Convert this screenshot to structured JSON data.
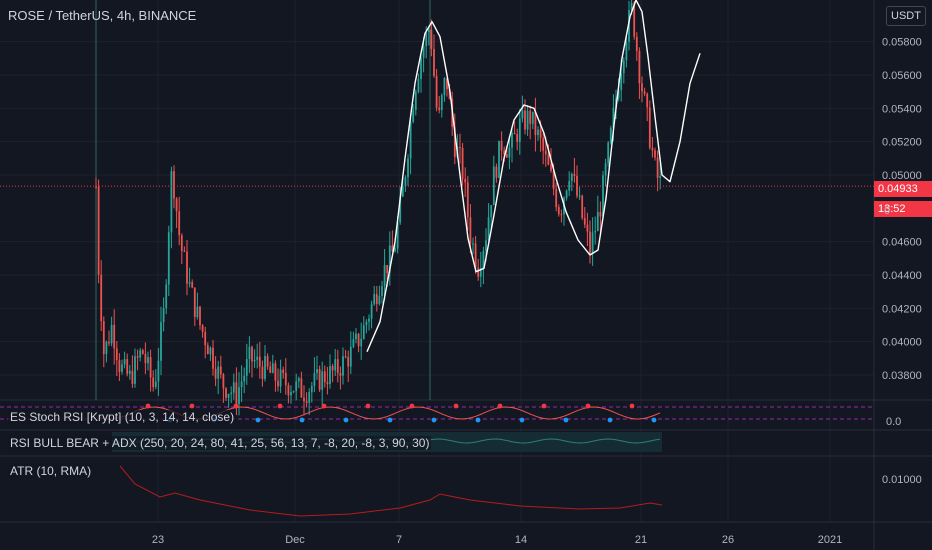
{
  "header": {
    "title": "ROSE / TetherUS, 4h, BINANCE",
    "currency_button": "USDT"
  },
  "indicators": {
    "stoch_label": "ES Stoch RSI [Krypt] (10, 3, 14, 14, close)",
    "rsi_label": "RSI BULL BEAR + ADX (250, 20, 24, 80, 41, 25, 56, 13, 7, -8, 20, -8, 3, 90, 30)",
    "atr_label": "ATR (10, RMA)",
    "stoch_axis_label": "0.0",
    "atr_axis_label": "0.01000"
  },
  "price_tags": {
    "last_price": "0.04933",
    "countdown": "13:52",
    "partial_value": "0"
  },
  "colors": {
    "background": "#131722",
    "bull": "#26a69a",
    "bear": "#ef5350",
    "grid": "#1e222d",
    "text": "#b2b5be",
    "price_tag": "#f23645",
    "overlay_curve": "#ffffff",
    "atr_line": "#b71c1c"
  },
  "chart_data": {
    "type": "candlestick",
    "title": "ROSE / TetherUS, 4h, BINANCE",
    "y_axis": {
      "side": "right",
      "range": [
        0.0365,
        0.0605
      ],
      "ticks": [
        "0.05800",
        "0.05600",
        "0.05400",
        "0.05200",
        "0.05000",
        "0.04600",
        "0.04400",
        "0.04200",
        "0.04000",
        "0.03800"
      ]
    },
    "x_axis": {
      "ticks": [
        "23",
        "Dec",
        "7",
        "14",
        "21",
        "26",
        "2021"
      ]
    },
    "last_price": 0.04933,
    "grid": true,
    "overlay_curve": [
      [
        367,
        0.0394
      ],
      [
        380,
        0.0412
      ],
      [
        395,
        0.046
      ],
      [
        405,
        0.051
      ],
      [
        415,
        0.0555
      ],
      [
        425,
        0.0585
      ],
      [
        432,
        0.0592
      ],
      [
        440,
        0.0583
      ],
      [
        450,
        0.055
      ],
      [
        460,
        0.05
      ],
      [
        468,
        0.0462
      ],
      [
        476,
        0.0442
      ],
      [
        484,
        0.0444
      ],
      [
        494,
        0.0476
      ],
      [
        504,
        0.051
      ],
      [
        514,
        0.0533
      ],
      [
        524,
        0.0542
      ],
      [
        534,
        0.054
      ],
      [
        544,
        0.0525
      ],
      [
        556,
        0.0498
      ],
      [
        566,
        0.0478
      ],
      [
        578,
        0.0461
      ],
      [
        590,
        0.0452
      ],
      [
        598,
        0.0455
      ],
      [
        606,
        0.0486
      ],
      [
        614,
        0.053
      ],
      [
        622,
        0.057
      ],
      [
        630,
        0.0595
      ],
      [
        636,
        0.0605
      ],
      [
        642,
        0.0598
      ],
      [
        648,
        0.0571
      ],
      [
        655,
        0.0535
      ],
      [
        662,
        0.05
      ],
      [
        670,
        0.0496
      ],
      [
        680,
        0.052
      ],
      [
        690,
        0.0555
      ],
      [
        700,
        0.0573
      ]
    ]
  }
}
